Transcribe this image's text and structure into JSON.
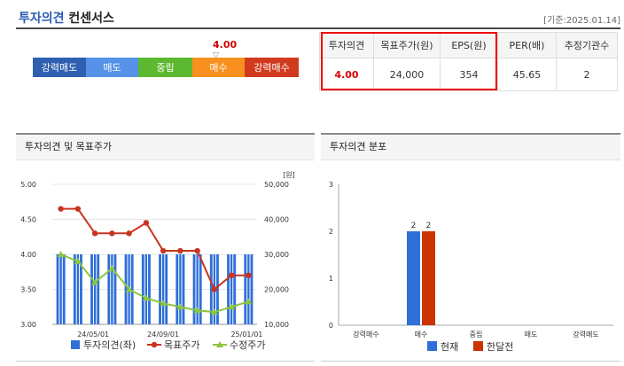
{
  "header": {
    "title_part1": "투자의견",
    "title_part2": "컨센서스",
    "date": "[기준:2025.01.14]"
  },
  "gauge": {
    "marker_value": "4.00",
    "marker_symbol": "▽",
    "segments": [
      {
        "label": "강력매도",
        "color": "#2f5fb0"
      },
      {
        "label": "매도",
        "color": "#5592e8"
      },
      {
        "label": "중립",
        "color": "#5cb82e"
      },
      {
        "label": "매수",
        "color": "#f7901e"
      },
      {
        "label": "강력매수",
        "color": "#d13a1f"
      }
    ]
  },
  "consensus_table": {
    "headers": [
      "투자의견",
      "목표주가(원)",
      "EPS(원)",
      "PER(배)",
      "추정기관수"
    ],
    "values": [
      "4.00",
      "24,000",
      "354",
      "45.65",
      "2"
    ]
  },
  "chart_data": [
    {
      "type": "bar+line",
      "title": "투자의견 및 목표주가",
      "y_left": {
        "ticks": [
          "5.00",
          "4.50",
          "4.00",
          "3.50",
          "3.00"
        ],
        "range": [
          3.0,
          5.0
        ]
      },
      "y_right": {
        "unit": "[원]",
        "ticks": [
          "50,000",
          "40,000",
          "30,000",
          "20,000",
          "10,000"
        ],
        "range": [
          10000,
          50000
        ]
      },
      "x_ticks": [
        "24/05/01",
        "24/09/01",
        "25/01/01"
      ],
      "legend": [
        "투자의견(좌)",
        "목표주가",
        "수정주가"
      ],
      "series": [
        {
          "name": "투자의견(좌)",
          "color": "#2e6fd8",
          "values": [
            4,
            4,
            4,
            4,
            4,
            4,
            4,
            4,
            4,
            4,
            4,
            4
          ]
        },
        {
          "name": "목표주가",
          "color": "#c8341f",
          "values": [
            43000,
            43000,
            36000,
            36000,
            36000,
            39000,
            31000,
            31000,
            31000,
            20000,
            24000,
            24000
          ]
        },
        {
          "name": "수정주가",
          "color": "#8cc63f",
          "values": [
            30000,
            28000,
            22000,
            26000,
            20000,
            17500,
            16000,
            15000,
            14000,
            13500,
            15000,
            16500
          ]
        }
      ]
    },
    {
      "type": "bar",
      "title": "투자의견 분포",
      "categories": [
        "강력매수",
        "매수",
        "중립",
        "매도",
        "강력매도"
      ],
      "y_ticks": [
        "3",
        "2",
        "1",
        "0"
      ],
      "ylim": [
        0,
        3
      ],
      "legend": [
        "현재",
        "한달전"
      ],
      "series": [
        {
          "name": "현재",
          "color": "#2e6fd8",
          "values": [
            0,
            2,
            0,
            0,
            0
          ],
          "labels": [
            "",
            "2",
            "",
            "",
            ""
          ]
        },
        {
          "name": "한달전",
          "color": "#cc3300",
          "values": [
            0,
            2,
            0,
            0,
            0
          ],
          "labels": [
            "",
            "2",
            "",
            "",
            ""
          ]
        }
      ]
    }
  ]
}
